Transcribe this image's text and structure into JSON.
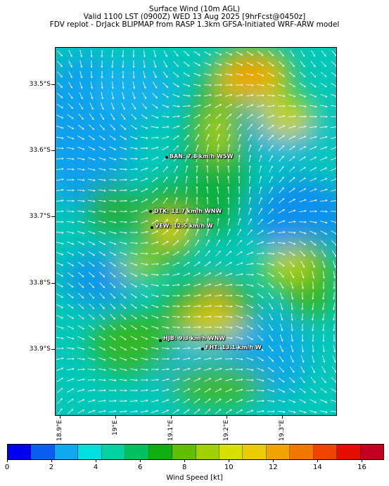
{
  "title": {
    "line1": "Surface Wind (10m AGL)",
    "line2": "Valid 1100 LST (0900Z) WED 13 Aug 2025 [9hrFcst@0450z]",
    "line3": "FDV replot - DrJack BLIPMAP from RASP 1.3km GFSA-Initiated WRF-ARW model"
  },
  "map": {
    "lat_labels": [
      "33.5°S",
      "33.6°S",
      "33.7°S",
      "33.8°S",
      "33.9°S"
    ],
    "lon_labels": [
      "18.9°E",
      "19°E",
      "19.1°E",
      "19.2°E",
      "19.3°E"
    ],
    "lat_range": [
      -34.0,
      -33.446
    ],
    "lon_range": [
      18.86,
      19.37
    ],
    "stations": [
      {
        "label": "BAN: 7.8 km/h WSW",
        "lon": 19.1,
        "lat": -33.611
      },
      {
        "label": "DTK: 11.7 km/h WNW",
        "lon": 19.07,
        "lat": -33.695
      },
      {
        "label": "VEW: 12.5 km/h W",
        "lon": 19.07,
        "lat": -33.718
      },
      {
        "label": "HJB: 9.3 km/h WNW",
        "lon": 19.085,
        "lat": -33.887
      },
      {
        "label": "FHT: 13.1 km/h W",
        "lon": 19.145,
        "lat": -33.9
      }
    ]
  },
  "colorbar": {
    "label": "Wind Speed [kt]",
    "ticks": [
      "0",
      "2",
      "4",
      "6",
      "8",
      "10",
      "12",
      "14",
      "16"
    ],
    "range": [
      0,
      17
    ],
    "colors": [
      "#0000ee",
      "#0a5ff0",
      "#10a8ee",
      "#00e0e0",
      "#00d2a0",
      "#00c060",
      "#10ae10",
      "#60c000",
      "#a0d200",
      "#d8e000",
      "#eccc00",
      "#f0a400",
      "#f07800",
      "#ee4400",
      "#e60c00",
      "#c40020"
    ]
  }
}
